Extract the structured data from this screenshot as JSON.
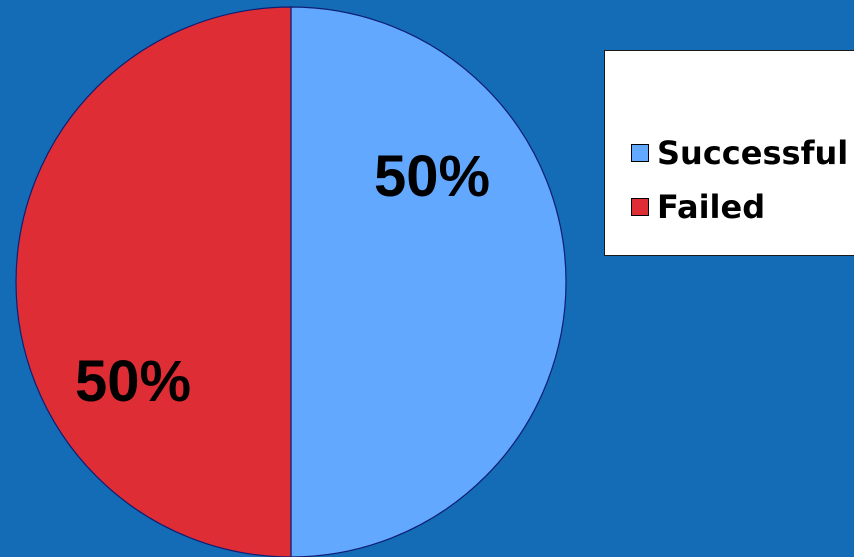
{
  "page": {
    "background": "#136CB5"
  },
  "chart_data": {
    "type": "pie",
    "categories": [
      "Successful",
      "Failed"
    ],
    "values": [
      50,
      50
    ],
    "slice_labels": [
      "50%",
      "50%"
    ],
    "colors": [
      "#63A8FF",
      "#DE2D35"
    ],
    "legend_position": "top-right",
    "legend": [
      {
        "label": "Successful",
        "color": "#63A8FF"
      },
      {
        "label": "Failed",
        "color": "#DE2D35"
      }
    ]
  }
}
